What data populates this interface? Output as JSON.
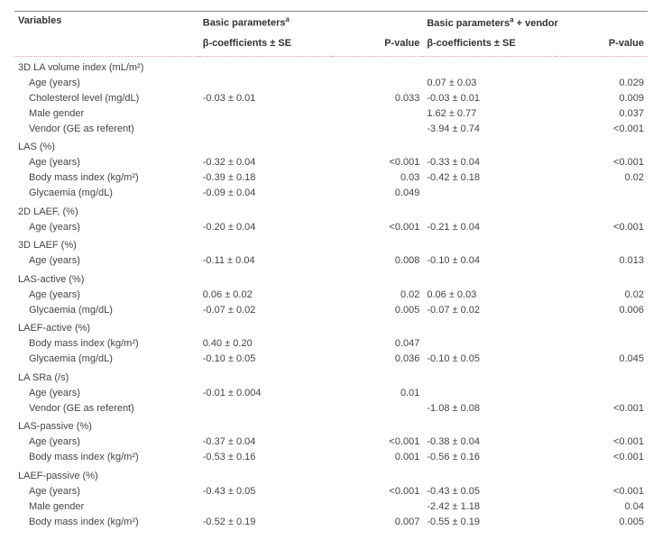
{
  "headers": {
    "variables": "Variables",
    "basic": "Basic parameters",
    "basic_vendor": "Basic parameters  + vendor",
    "sup": "a",
    "beta": "β-coefficients ± SE",
    "pval": "P-value"
  },
  "groups": [
    {
      "title": "3D LA volume index (mL/m²)",
      "rows": [
        {
          "var": "Age (years)",
          "b1": "",
          "p1": "",
          "b2": "0.07 ± 0.03",
          "p2": "0.029"
        },
        {
          "var": "Cholesterol level (mg/dL)",
          "b1": "-0.03 ± 0.01",
          "p1": "0.033",
          "b2": "-0.03 ± 0.01",
          "p2": "0.009"
        },
        {
          "var": "Male gender",
          "b1": "",
          "p1": "",
          "b2": "1.62 ± 0.77",
          "p2": "0.037"
        },
        {
          "var": "Vendor (GE as referent)",
          "b1": "",
          "p1": "",
          "b2": "-3.94 ± 0.74",
          "p2": "<0.001"
        }
      ]
    },
    {
      "title": "LAS (%)",
      "rows": [
        {
          "var": "Age (years)",
          "b1": "-0.32 ± 0.04",
          "p1": "<0.001",
          "b2": "-0.33 ± 0.04",
          "p2": "<0.001"
        },
        {
          "var": "Body mass index (kg/m²)",
          "b1": "-0.39 ± 0.18",
          "p1": "0.03",
          "b2": "-0.42 ± 0.18",
          "p2": "0.02"
        },
        {
          "var": "Glycaemia (mg/dL)",
          "b1": "-0.09 ± 0.04",
          "p1": "0.049",
          "b2": "",
          "p2": ""
        }
      ]
    },
    {
      "title": "2D LAEF, (%)",
      "rows": [
        {
          "var": "Age (years)",
          "b1": "-0.20 ± 0.04",
          "p1": "<0.001",
          "b2": "-0.21 ± 0.04",
          "p2": "<0.001"
        }
      ]
    },
    {
      "title": "3D LAEF (%)",
      "rows": [
        {
          "var": "Age (years)",
          "b1": "-0.11 ± 0.04",
          "p1": "0.008",
          "b2": "-0.10 ± 0.04",
          "p2": "0.013"
        }
      ]
    },
    {
      "title": "LAS-active (%)",
      "rows": [
        {
          "var": "Age (years)",
          "b1": "0.06 ± 0.02",
          "p1": "0.02",
          "b2": "0.06 ± 0.03",
          "p2": "0.02"
        },
        {
          "var": "Glycaemia (mg/dL)",
          "b1": "-0.07 ± 0.02",
          "p1": "0.005",
          "b2": "-0.07 ± 0.02",
          "p2": "0.006"
        }
      ]
    },
    {
      "title": "LAEF-active (%)",
      "rows": [
        {
          "var": "Body mass index (kg/m²)",
          "b1": "0.40 ± 0.20",
          "p1": "0.047",
          "b2": "",
          "p2": ""
        },
        {
          "var": "Glycaemia (mg/dL)",
          "b1": "-0.10 ± 0.05",
          "p1": "0.036",
          "b2": "-0.10 ± 0.05",
          "p2": "0.045"
        }
      ]
    },
    {
      "title": "LA SRa (/s)",
      "rows": [
        {
          "var": "Age (years)",
          "b1": "-0.01 ± 0.004",
          "p1": "0.01",
          "b2": "",
          "p2": ""
        },
        {
          "var": "Vendor (GE as referent)",
          "b1": "",
          "p1": "",
          "b2": "-1.08 ± 0.08",
          "p2": "<0.001"
        }
      ]
    },
    {
      "title": "LAS-passive (%)",
      "rows": [
        {
          "var": "Age (years)",
          "b1": "-0.37 ± 0.04",
          "p1": "<0.001",
          "b2": "-0.38 ± 0.04",
          "p2": "<0.001"
        },
        {
          "var": "Body mass index (kg/m²)",
          "b1": "-0.53 ± 0.16",
          "p1": "0.001",
          "b2": "-0.56 ± 0.16",
          "p2": "<0.001"
        }
      ]
    },
    {
      "title": "LAEF-passive (%)",
      "rows": [
        {
          "var": "Age (years)",
          "b1": "-0.43 ± 0.05",
          "p1": "<0.001",
          "b2": "-0.43 ± 0.05",
          "p2": "<0.001"
        },
        {
          "var": "Male gender",
          "b1": "",
          "p1": "",
          "b2": "-2.42 ± 1.18",
          "p2": "0.04"
        },
        {
          "var": "Body mass index (kg/m²)",
          "b1": "-0.52 ± 0.19",
          "p1": "0.007",
          "b2": "-0.55 ± 0.19",
          "p2": "0.005"
        }
      ]
    }
  ]
}
